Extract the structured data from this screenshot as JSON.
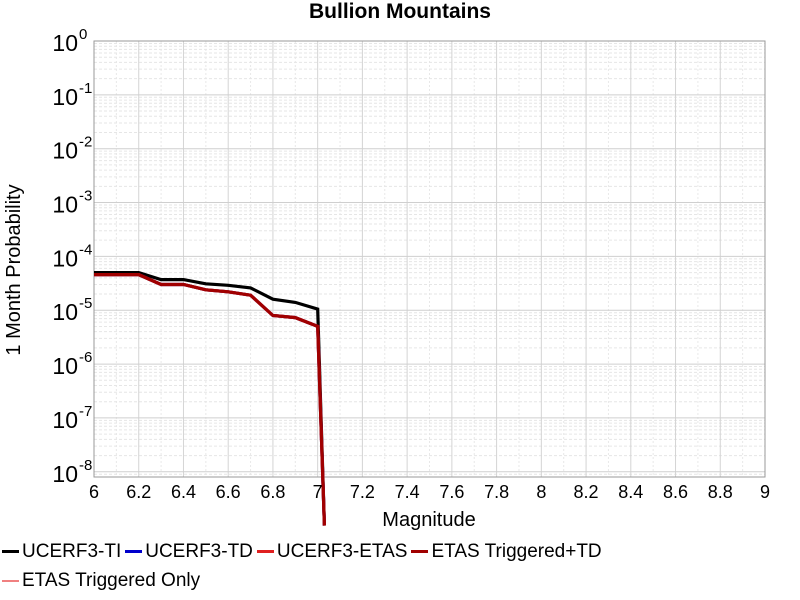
{
  "chart_data": {
    "type": "line",
    "title": "Bullion Mountains",
    "xlabel": "Magnitude",
    "ylabel": "1 Month Probability",
    "xlim": [
      6,
      9
    ],
    "ylim": [
      8e-09,
      1
    ],
    "yscale": "log",
    "grid": true,
    "legend_position": "bottom",
    "x_ticks": [
      "6",
      "6.2",
      "6.4",
      "6.6",
      "6.8",
      "7",
      "7.2",
      "7.4",
      "7.6",
      "7.8",
      "8",
      "8.2",
      "8.4",
      "8.6",
      "8.8",
      "9"
    ],
    "y_ticks": [
      {
        "base": "10",
        "exp": "0",
        "value": 1
      },
      {
        "base": "10",
        "exp": "-1",
        "value": 0.1
      },
      {
        "base": "10",
        "exp": "-2",
        "value": 0.01
      },
      {
        "base": "10",
        "exp": "-3",
        "value": 0.001
      },
      {
        "base": "10",
        "exp": "-4",
        "value": 0.0001
      },
      {
        "base": "10",
        "exp": "-5",
        "value": 1e-05
      },
      {
        "base": "10",
        "exp": "-6",
        "value": 1e-06
      },
      {
        "base": "10",
        "exp": "-7",
        "value": 1e-07
      },
      {
        "base": "10",
        "exp": "-8",
        "value": 1e-08
      }
    ],
    "series": [
      {
        "name": "UCERF3-TI",
        "color": "#000000",
        "x": [
          6.0,
          6.1,
          6.2,
          6.3,
          6.4,
          6.5,
          6.6,
          6.7,
          6.8,
          6.9,
          7.0,
          7.03
        ],
        "y": [
          5e-05,
          5e-05,
          5e-05,
          3.7e-05,
          3.7e-05,
          3.1e-05,
          2.9e-05,
          2.6e-05,
          1.6e-05,
          1.4e-05,
          1.05e-05,
          1e-09
        ]
      },
      {
        "name": "UCERF3-TD",
        "color": "#0000cc",
        "x": [
          6.0,
          6.1,
          6.2,
          6.3,
          6.4,
          6.5,
          6.6,
          6.7,
          6.8,
          6.9,
          7.0,
          7.03
        ],
        "y": [
          4.6e-05,
          4.6e-05,
          4.6e-05,
          3e-05,
          3e-05,
          2.4e-05,
          2.2e-05,
          1.9e-05,
          8e-06,
          7.3e-06,
          5e-06,
          1e-09
        ]
      },
      {
        "name": "UCERF3-ETAS",
        "color": "#e02020",
        "x": [
          6.0,
          6.1,
          6.2,
          6.3,
          6.4,
          6.5,
          6.6,
          6.7,
          6.8,
          6.9,
          7.0,
          7.03
        ],
        "y": [
          4.6e-05,
          4.6e-05,
          4.6e-05,
          3e-05,
          3e-05,
          2.4e-05,
          2.2e-05,
          1.9e-05,
          8e-06,
          7.3e-06,
          5e-06,
          1e-09
        ]
      },
      {
        "name": "ETAS Triggered+TD",
        "color": "#a00000",
        "x": [
          6.0,
          6.1,
          6.2,
          6.3,
          6.4,
          6.5,
          6.6,
          6.7,
          6.8,
          6.9,
          7.0,
          7.03
        ],
        "y": [
          4.6e-05,
          4.6e-05,
          4.6e-05,
          3e-05,
          3e-05,
          2.4e-05,
          2.2e-05,
          1.9e-05,
          8e-06,
          7.3e-06,
          5e-06,
          1e-09
        ]
      },
      {
        "name": "ETAS Triggered Only",
        "color": "#f08080",
        "x": [],
        "y": []
      }
    ]
  }
}
